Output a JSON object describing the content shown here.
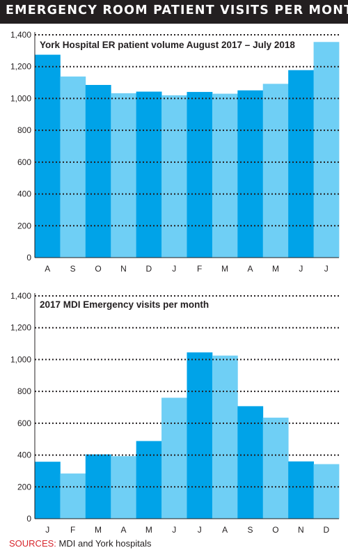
{
  "header": {
    "title": "EMERGENCY ROOM PATIENT VISITS PER MONTH"
  },
  "colors": {
    "dark_bar": "#00a3e8",
    "light_bar": "#6fcff5",
    "header_bg": "#231f20",
    "source_label": "#d7262d"
  },
  "chart_data": [
    {
      "type": "bar",
      "title": "York Hospital ER patient volume August 2017 – July 2018",
      "categories": [
        "A",
        "S",
        "O",
        "N",
        "D",
        "J",
        "F",
        "M",
        "A",
        "M",
        "J",
        "J"
      ],
      "values": [
        1275,
        1138,
        1085,
        1033,
        1043,
        1020,
        1041,
        1030,
        1051,
        1092,
        1178,
        1355
      ],
      "yticks": [
        "0",
        "200",
        "400",
        "600",
        "800",
        "1,000",
        "1,200",
        "1,400"
      ],
      "ylim": [
        0,
        1400
      ],
      "grid": true
    },
    {
      "type": "bar",
      "title": "2017 MDI Emergency visits per month",
      "categories": [
        "J",
        "F",
        "M",
        "A",
        "M",
        "J",
        "J",
        "A",
        "S",
        "O",
        "N",
        "D"
      ],
      "values": [
        358,
        284,
        404,
        393,
        488,
        760,
        1045,
        1025,
        707,
        635,
        360,
        343
      ],
      "yticks": [
        "0",
        "200",
        "400",
        "600",
        "800",
        "1,000",
        "1,200",
        "1,400"
      ],
      "ylim": [
        0,
        1400
      ],
      "grid": true
    }
  ],
  "source": {
    "label": "SOURCES:",
    "text": " MDI and York hospitals"
  }
}
